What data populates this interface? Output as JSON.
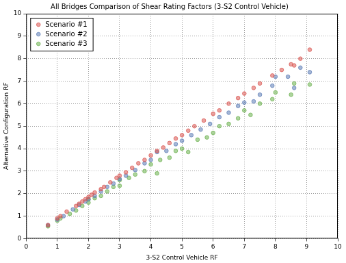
{
  "chart_data": {
    "type": "scatter",
    "title": "All Bridges Comparison of Shear Rating Factors (3-S2 Control Vehicle)",
    "x_label": "3-S2 Control Vehicle RF",
    "y_label": "Alternative Configuration RF",
    "xlim": [
      0,
      10
    ],
    "xticks": [
      0,
      1,
      2,
      3,
      4,
      5,
      6,
      7,
      8,
      9,
      10
    ],
    "ylim": [
      0,
      10
    ],
    "yticks": [
      0,
      1,
      2,
      3,
      4,
      5,
      6,
      7,
      8,
      9,
      10
    ],
    "grid": true,
    "legend": "upper left",
    "marker": "circle",
    "series": [
      {
        "name": "Scenario #1",
        "color": "#d9534f",
        "x": [
          0.7,
          1.0,
          1.1,
          1.3,
          1.6,
          1.7,
          1.8,
          1.9,
          2.0,
          2.1,
          2.2,
          2.4,
          2.5,
          2.7,
          2.9,
          3.0,
          3.2,
          3.4,
          3.6,
          3.8,
          4.0,
          4.2,
          4.4,
          4.6,
          4.8,
          5.0,
          5.2,
          5.4,
          5.7,
          6.0,
          6.2,
          6.5,
          6.8,
          7.0,
          7.3,
          7.5,
          7.9,
          8.2,
          8.5,
          8.6,
          8.8,
          9.1
        ],
        "values": [
          0.6,
          0.9,
          1.0,
          1.2,
          1.45,
          1.55,
          1.65,
          1.75,
          1.85,
          1.95,
          2.05,
          2.2,
          2.3,
          2.5,
          2.7,
          2.8,
          2.95,
          3.15,
          3.35,
          3.5,
          3.7,
          3.9,
          4.05,
          4.25,
          4.45,
          4.6,
          4.8,
          5.0,
          5.25,
          5.55,
          5.7,
          6.0,
          6.25,
          6.45,
          6.7,
          6.9,
          7.25,
          7.5,
          7.75,
          7.7,
          8.0,
          8.4
        ]
      },
      {
        "name": "Scenario #2",
        "color": "#5b7bb5",
        "x": [
          0.7,
          1.0,
          1.2,
          1.5,
          1.7,
          1.9,
          2.0,
          2.2,
          2.4,
          2.6,
          2.8,
          3.0,
          3.2,
          3.5,
          3.8,
          4.0,
          4.2,
          4.5,
          4.8,
          5.0,
          5.3,
          5.6,
          5.9,
          6.2,
          6.5,
          6.8,
          7.0,
          7.3,
          7.5,
          7.9,
          8.0,
          8.4,
          8.6,
          8.8,
          9.1
        ],
        "values": [
          0.6,
          0.85,
          1.0,
          1.3,
          1.5,
          1.65,
          1.75,
          1.9,
          2.1,
          2.3,
          2.45,
          2.65,
          2.8,
          3.05,
          3.35,
          3.5,
          3.85,
          3.9,
          4.2,
          4.35,
          4.6,
          4.85,
          5.1,
          5.4,
          5.6,
          5.9,
          6.05,
          6.1,
          6.4,
          6.8,
          7.2,
          7.2,
          6.7,
          7.6,
          7.4
        ]
      },
      {
        "name": "Scenario #3",
        "color": "#6ab04c",
        "x": [
          0.7,
          1.0,
          1.1,
          1.4,
          1.6,
          1.8,
          2.0,
          2.0,
          2.2,
          2.4,
          2.6,
          2.8,
          3.0,
          3.0,
          3.3,
          3.5,
          3.8,
          4.0,
          4.2,
          4.3,
          4.6,
          4.8,
          5.0,
          5.2,
          5.5,
          5.8,
          6.0,
          6.2,
          6.5,
          6.8,
          7.0,
          7.2,
          7.5,
          7.9,
          8.0,
          8.5,
          8.6,
          9.1
        ],
        "values": [
          0.55,
          0.8,
          0.9,
          1.1,
          1.25,
          1.45,
          1.6,
          1.75,
          1.8,
          1.9,
          2.1,
          2.3,
          2.35,
          2.6,
          2.7,
          2.85,
          3.0,
          3.3,
          2.9,
          3.5,
          3.6,
          3.9,
          4.0,
          3.85,
          4.4,
          4.5,
          4.7,
          5.0,
          5.1,
          5.35,
          5.7,
          5.5,
          6.0,
          6.2,
          6.5,
          6.4,
          6.9,
          6.85
        ]
      }
    ]
  }
}
